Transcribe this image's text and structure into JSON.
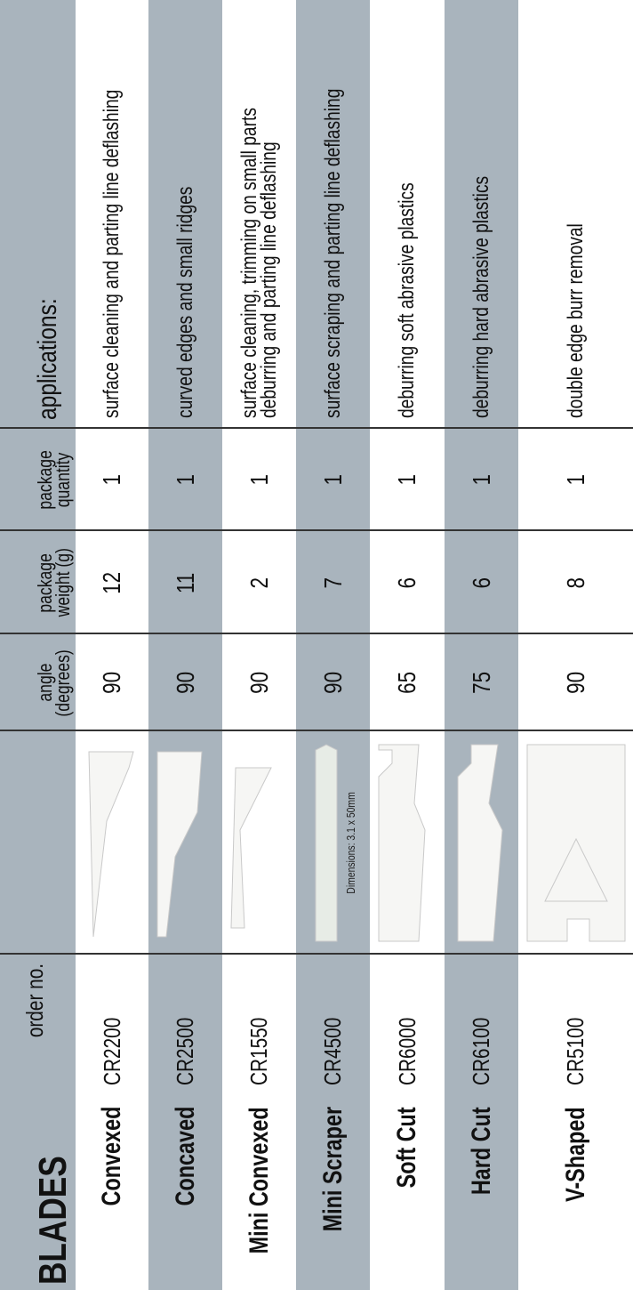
{
  "table": {
    "header": {
      "title": "BLADES",
      "order_no": "order no.",
      "angle": [
        "angle",
        "(degrees)"
      ],
      "weight": [
        "package",
        "weight (g)"
      ],
      "quantity": [
        "package",
        "quantity"
      ],
      "applications": "applications:"
    },
    "rows": [
      {
        "name": "Convexed",
        "order_no": "CR2200",
        "angle": 90,
        "weight": 12,
        "quantity": 1,
        "applications": [
          "surface cleaning and parting line deflashing"
        ]
      },
      {
        "name": "Concaved",
        "order_no": "CR2500",
        "angle": 90,
        "weight": 11,
        "quantity": 1,
        "applications": [
          "curved edges and small ridges"
        ]
      },
      {
        "name": "Mini Convexed",
        "order_no": "CR1550",
        "angle": 90,
        "weight": 2,
        "quantity": 1,
        "applications": [
          "surface cleaning, trimming on small parts",
          "deburring and parting line deflashing"
        ]
      },
      {
        "name": "Mini Scraper",
        "order_no": "CR4500",
        "angle": 90,
        "weight": 7,
        "quantity": 1,
        "applications": [
          "surface scraping and parting line deflashing"
        ],
        "note": "Dimensions: 3.1 x 50mm"
      },
      {
        "name": "Soft Cut",
        "order_no": "CR6000",
        "angle": 65,
        "weight": 6,
        "quantity": 1,
        "applications": [
          "deburring soft abrasive plastics"
        ]
      },
      {
        "name": "Hard Cut",
        "order_no": "CR6100",
        "angle": 75,
        "weight": 6,
        "quantity": 1,
        "applications": [
          "deburring hard abrasive plastics"
        ]
      },
      {
        "name": "V-Shaped",
        "order_no": "CR5100",
        "angle": 90,
        "weight": 8,
        "quantity": 1,
        "applications": [
          "double edge burr removal"
        ]
      }
    ]
  }
}
